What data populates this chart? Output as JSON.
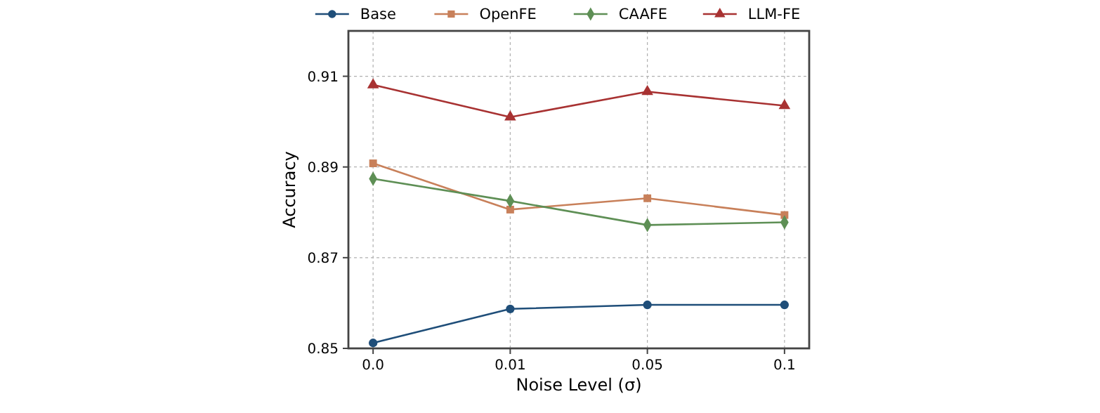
{
  "chart_data": {
    "type": "line",
    "xlabel": "Noise Level (σ)",
    "ylabel": "Accuracy",
    "categories": [
      "0.0",
      "0.01",
      "0.05",
      "0.1"
    ],
    "series": [
      {
        "name": "Base",
        "color": "#1f4e79",
        "marker": "circle",
        "values": [
          0.8512,
          0.8587,
          0.8596,
          0.8596
        ]
      },
      {
        "name": "OpenFE",
        "color": "#c8805a",
        "marker": "square",
        "values": [
          0.8908,
          0.8806,
          0.8831,
          0.8794
        ]
      },
      {
        "name": "CAAFE",
        "color": "#5e8f55",
        "marker": "diamond",
        "values": [
          0.8874,
          0.8825,
          0.8772,
          0.8778
        ]
      },
      {
        "name": "LLM-FE",
        "color": "#a83232",
        "marker": "triangle",
        "values": [
          0.9081,
          0.901,
          0.9066,
          0.9035
        ]
      }
    ],
    "ylim": [
      0.85,
      0.92
    ],
    "yticks": [
      0.85,
      0.87,
      0.89,
      0.91
    ],
    "grid": true,
    "legend": "top",
    "line_style": "solid"
  }
}
